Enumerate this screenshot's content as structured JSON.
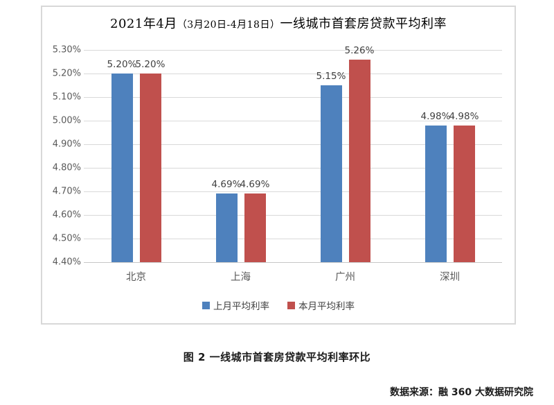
{
  "chart": {
    "title_main": "2021年4月",
    "title_paren": "（3月20日-4月18日）",
    "title_rest": "一线城市首套房贷款平均利率"
  },
  "chart_data": {
    "type": "bar",
    "title": "2021年4月（3月20日-4月18日）一线城市首套房贷款平均利率",
    "categories": [
      "北京",
      "上海",
      "广州",
      "深圳"
    ],
    "series": [
      {
        "name": "上月平均利率",
        "color": "#4E81BD",
        "values": [
          5.2,
          4.69,
          5.15,
          4.98
        ],
        "labels": [
          "5.20%",
          "4.69%",
          "5.15%",
          "4.98%"
        ]
      },
      {
        "name": "本月平均利率",
        "color": "#C0504D",
        "values": [
          5.2,
          4.69,
          5.26,
          4.98
        ],
        "labels": [
          "5.20%",
          "4.69%",
          "5.26%",
          "4.98%"
        ]
      }
    ],
    "xlabel": "",
    "ylabel": "",
    "ylim": [
      4.4,
      5.3
    ],
    "ytick_step": 0.1,
    "ytick_labels": [
      "5.30%",
      "5.20%",
      "5.10%",
      "5.00%",
      "4.90%",
      "4.80%",
      "4.70%",
      "4.60%",
      "4.50%",
      "4.40%"
    ],
    "grid": true,
    "legend_position": "bottom"
  },
  "caption": "图 2  一线城市首套房贷款平均利率环比",
  "source": "数据来源：融 360 大数据研究院",
  "colors": {
    "series_last_month": "#4E81BD",
    "series_this_month": "#C0504D",
    "gridline": "#D9D9D9",
    "axis_text": "#595959",
    "label_text": "#404040"
  }
}
